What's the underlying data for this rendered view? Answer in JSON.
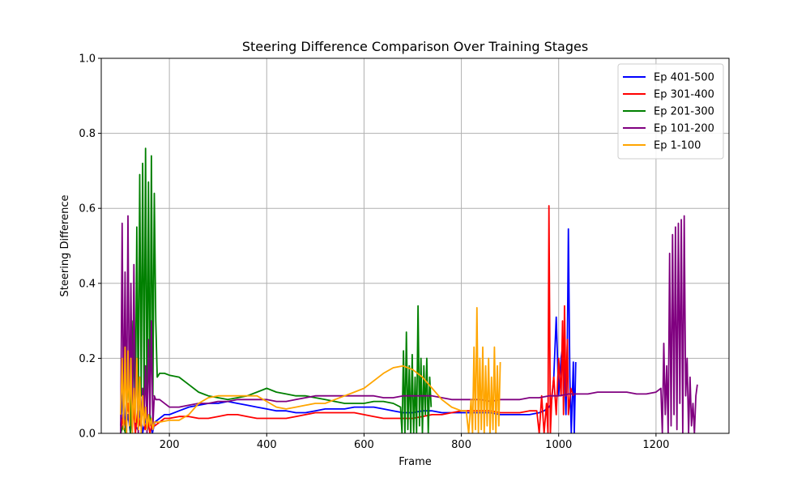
{
  "chart_data": {
    "type": "line",
    "title": "Steering Difference Comparison Over Training Stages",
    "xlabel": "Frame",
    "ylabel": "Steering Difference",
    "xlim": [
      60,
      1350
    ],
    "ylim": [
      0,
      1.0
    ],
    "xticks": [
      200,
      400,
      600,
      800,
      1000,
      1200
    ],
    "yticks": [
      0.0,
      0.2,
      0.4,
      0.6,
      0.8,
      1.0
    ],
    "grid": true,
    "legend_position": "top-right",
    "series": [
      {
        "name": "Ep 401-500",
        "color": "#0000ff",
        "x": [
          100,
          105,
          110,
          115,
          120,
          125,
          130,
          135,
          140,
          145,
          150,
          155,
          160,
          165,
          170,
          180,
          190,
          200,
          220,
          240,
          260,
          280,
          300,
          320,
          340,
          360,
          380,
          400,
          420,
          440,
          460,
          480,
          500,
          520,
          540,
          560,
          580,
          600,
          620,
          640,
          660,
          680,
          700,
          720,
          740,
          760,
          780,
          800,
          820,
          840,
          860,
          880,
          900,
          920,
          940,
          960,
          970,
          980,
          985,
          990,
          995,
          1000,
          1005,
          1010,
          1015,
          1018,
          1020,
          1023,
          1026,
          1028,
          1030,
          1032,
          1035
        ],
        "y": [
          0.02,
          0.12,
          0.01,
          0.05,
          0.0,
          0.08,
          0.02,
          0.01,
          0.06,
          0.0,
          0.04,
          0.01,
          0.05,
          0.0,
          0.03,
          0.04,
          0.05,
          0.05,
          0.06,
          0.07,
          0.075,
          0.08,
          0.08,
          0.085,
          0.08,
          0.075,
          0.07,
          0.065,
          0.06,
          0.06,
          0.055,
          0.055,
          0.06,
          0.065,
          0.065,
          0.065,
          0.07,
          0.07,
          0.07,
          0.065,
          0.06,
          0.055,
          0.055,
          0.06,
          0.06,
          0.055,
          0.055,
          0.055,
          0.055,
          0.055,
          0.055,
          0.05,
          0.05,
          0.05,
          0.05,
          0.055,
          0.06,
          0.07,
          0.08,
          0.15,
          0.31,
          0.1,
          0.2,
          0.25,
          0.05,
          0.25,
          0.545,
          0.15,
          0.0,
          0.1,
          0.19,
          0.0,
          0.19
        ]
      },
      {
        "name": "Ep 301-400",
        "color": "#ff0000",
        "x": [
          100,
          105,
          110,
          115,
          120,
          125,
          130,
          135,
          140,
          145,
          150,
          155,
          160,
          165,
          170,
          180,
          190,
          200,
          220,
          240,
          260,
          280,
          300,
          320,
          340,
          360,
          380,
          400,
          420,
          440,
          460,
          480,
          500,
          520,
          540,
          560,
          580,
          600,
          620,
          640,
          660,
          680,
          700,
          720,
          740,
          760,
          780,
          800,
          820,
          840,
          860,
          880,
          900,
          920,
          940,
          955,
          960,
          965,
          970,
          975,
          978,
          980,
          983,
          986,
          990,
          995,
          1000,
          1005,
          1008,
          1010,
          1012,
          1015,
          1018,
          1020,
          1025,
          1030
        ],
        "y": [
          0.0,
          0.05,
          0.02,
          0.08,
          0.01,
          0.1,
          0.0,
          0.06,
          0.02,
          0.07,
          0.01,
          0.04,
          0.0,
          0.03,
          0.02,
          0.03,
          0.04,
          0.04,
          0.045,
          0.045,
          0.04,
          0.04,
          0.045,
          0.05,
          0.05,
          0.045,
          0.04,
          0.04,
          0.04,
          0.04,
          0.045,
          0.05,
          0.055,
          0.055,
          0.055,
          0.055,
          0.055,
          0.05,
          0.045,
          0.04,
          0.04,
          0.04,
          0.04,
          0.045,
          0.05,
          0.05,
          0.055,
          0.06,
          0.06,
          0.06,
          0.06,
          0.055,
          0.055,
          0.055,
          0.06,
          0.06,
          0.0,
          0.1,
          0.0,
          0.08,
          0.0,
          0.607,
          0.0,
          0.1,
          0.15,
          0.05,
          0.2,
          0.1,
          0.3,
          0.05,
          0.34,
          0.1,
          0.25,
          0.05,
          0.12,
          0.1
        ]
      },
      {
        "name": "Ep 201-300",
        "color": "#008000",
        "x": [
          100,
          105,
          110,
          115,
          120,
          125,
          130,
          133,
          136,
          139,
          142,
          145,
          148,
          151,
          154,
          157,
          160,
          163,
          166,
          169,
          172,
          175,
          180,
          190,
          200,
          220,
          240,
          260,
          280,
          300,
          320,
          340,
          360,
          380,
          400,
          420,
          440,
          460,
          480,
          500,
          520,
          540,
          560,
          580,
          600,
          620,
          640,
          660,
          675,
          678,
          681,
          684,
          687,
          690,
          693,
          696,
          699,
          702,
          705,
          708,
          711,
          714,
          717,
          720,
          723,
          726,
          729,
          732,
          735,
          738
        ],
        "y": [
          0.0,
          0.02,
          0.0,
          0.15,
          0.0,
          0.3,
          0.05,
          0.55,
          0.05,
          0.69,
          0.1,
          0.72,
          0.08,
          0.76,
          0.05,
          0.67,
          0.03,
          0.74,
          0.1,
          0.64,
          0.3,
          0.15,
          0.16,
          0.16,
          0.155,
          0.15,
          0.13,
          0.11,
          0.1,
          0.095,
          0.09,
          0.095,
          0.1,
          0.11,
          0.12,
          0.11,
          0.105,
          0.1,
          0.1,
          0.095,
          0.09,
          0.085,
          0.08,
          0.08,
          0.08,
          0.085,
          0.085,
          0.08,
          0.07,
          0.0,
          0.22,
          0.0,
          0.27,
          0.01,
          0.18,
          0.0,
          0.21,
          0.0,
          0.15,
          0.0,
          0.34,
          0.02,
          0.2,
          0.0,
          0.18,
          0.05,
          0.2,
          0.0,
          0.15,
          0.07
        ]
      },
      {
        "name": "Ep 101-200",
        "color": "#800080",
        "x": [
          100,
          103,
          106,
          109,
          112,
          115,
          118,
          121,
          124,
          127,
          130,
          133,
          136,
          139,
          142,
          145,
          148,
          151,
          154,
          157,
          160,
          163,
          166,
          169,
          172,
          180,
          200,
          220,
          240,
          260,
          280,
          300,
          320,
          340,
          360,
          380,
          400,
          420,
          440,
          460,
          480,
          500,
          520,
          540,
          560,
          580,
          600,
          620,
          640,
          660,
          680,
          700,
          720,
          740,
          760,
          780,
          800,
          820,
          840,
          860,
          880,
          900,
          920,
          940,
          960,
          980,
          1000,
          1020,
          1040,
          1060,
          1080,
          1100,
          1120,
          1140,
          1160,
          1180,
          1200,
          1210,
          1213,
          1216,
          1219,
          1222,
          1225,
          1228,
          1231,
          1234,
          1237,
          1240,
          1243,
          1246,
          1249,
          1252,
          1255,
          1258,
          1261,
          1264,
          1267,
          1270,
          1273,
          1276,
          1279,
          1282,
          1285
        ],
        "y": [
          0.0,
          0.56,
          0.02,
          0.43,
          0.0,
          0.58,
          0.03,
          0.4,
          0.0,
          0.45,
          0.05,
          0.2,
          0.0,
          0.15,
          0.02,
          0.12,
          0.05,
          0.18,
          0.0,
          0.25,
          0.05,
          0.3,
          0.02,
          0.1,
          0.09,
          0.09,
          0.07,
          0.07,
          0.075,
          0.08,
          0.08,
          0.085,
          0.085,
          0.09,
          0.09,
          0.09,
          0.09,
          0.085,
          0.085,
          0.09,
          0.095,
          0.1,
          0.1,
          0.1,
          0.1,
          0.1,
          0.1,
          0.1,
          0.095,
          0.095,
          0.1,
          0.1,
          0.1,
          0.1,
          0.095,
          0.09,
          0.09,
          0.09,
          0.09,
          0.085,
          0.09,
          0.09,
          0.09,
          0.095,
          0.095,
          0.1,
          0.1,
          0.105,
          0.105,
          0.105,
          0.11,
          0.11,
          0.11,
          0.11,
          0.105,
          0.105,
          0.11,
          0.12,
          0.0,
          0.24,
          0.05,
          0.18,
          0.0,
          0.48,
          0.02,
          0.53,
          0.05,
          0.55,
          0.01,
          0.56,
          0.08,
          0.57,
          0.0,
          0.58,
          0.1,
          0.2,
          0.0,
          0.15,
          0.02,
          0.08,
          0.0,
          0.1,
          0.13
        ]
      },
      {
        "name": "Ep 1-100",
        "color": "#ffa500",
        "x": [
          100,
          103,
          106,
          109,
          112,
          115,
          118,
          121,
          124,
          127,
          130,
          133,
          136,
          139,
          142,
          145,
          148,
          151,
          154,
          157,
          160,
          163,
          166,
          169,
          172,
          180,
          200,
          220,
          240,
          260,
          280,
          300,
          320,
          340,
          360,
          380,
          400,
          420,
          440,
          460,
          480,
          500,
          520,
          540,
          560,
          580,
          600,
          620,
          640,
          660,
          680,
          700,
          720,
          740,
          760,
          780,
          800,
          810,
          815,
          820,
          823,
          826,
          829,
          832,
          835,
          838,
          841,
          844,
          847,
          850,
          853,
          856,
          859,
          862,
          865,
          868,
          871,
          874,
          877,
          880
        ],
        "y": [
          0.05,
          0.2,
          0.01,
          0.23,
          0.0,
          0.22,
          0.02,
          0.2,
          0.0,
          0.12,
          0.03,
          0.2,
          0.01,
          0.15,
          0.0,
          0.1,
          0.02,
          0.07,
          0.01,
          0.05,
          0.02,
          0.04,
          0.01,
          0.03,
          0.03,
          0.03,
          0.035,
          0.035,
          0.05,
          0.08,
          0.095,
          0.1,
          0.1,
          0.1,
          0.1,
          0.1,
          0.085,
          0.07,
          0.065,
          0.07,
          0.075,
          0.08,
          0.08,
          0.09,
          0.1,
          0.11,
          0.12,
          0.14,
          0.16,
          0.175,
          0.18,
          0.17,
          0.15,
          0.12,
          0.09,
          0.07,
          0.06,
          0.06,
          0.0,
          0.09,
          0.0,
          0.23,
          0.01,
          0.335,
          0.0,
          0.2,
          0.01,
          0.23,
          0.0,
          0.18,
          0.02,
          0.2,
          0.0,
          0.15,
          0.01,
          0.23,
          0.0,
          0.18,
          0.02,
          0.19
        ]
      }
    ]
  }
}
